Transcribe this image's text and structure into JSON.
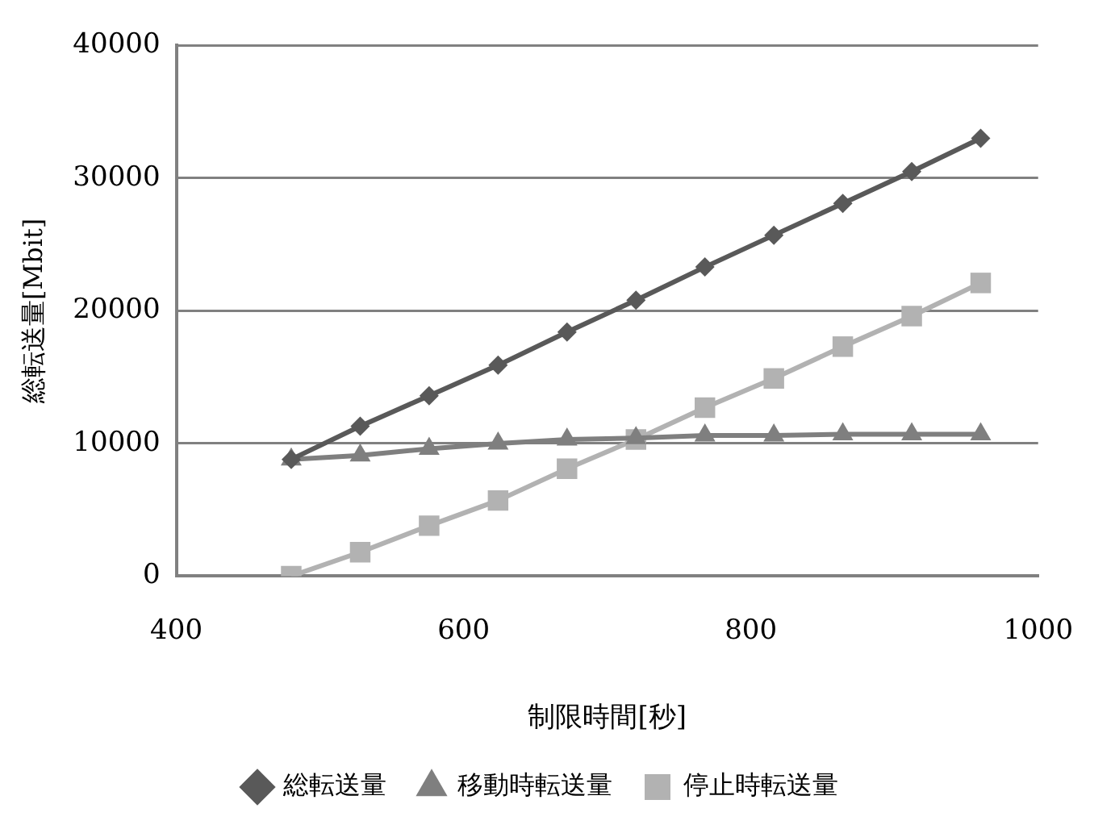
{
  "chart_data": {
    "type": "line",
    "xlabel": "制限時間[秒]",
    "ylabel": "総転送量[Mbit]",
    "x": [
      480,
      528,
      576,
      624,
      672,
      720,
      768,
      816,
      864,
      912,
      960
    ],
    "xlim": [
      400,
      1000
    ],
    "xticks": [
      400,
      600,
      800,
      1000
    ],
    "ylim": [
      0,
      40000
    ],
    "yticks": [
      0,
      10000,
      20000,
      30000,
      40000
    ],
    "grid": "y",
    "legend": "bottom",
    "line_style": "solid",
    "series": [
      {
        "name": "総転送量",
        "color": "#595959",
        "marker": "diamond",
        "values": [
          8800,
          11300,
          13600,
          15900,
          18400,
          20800,
          23300,
          25700,
          28100,
          30500,
          33000
        ]
      },
      {
        "name": "移動時転送量",
        "color": "#7f7f7f",
        "marker": "triangle",
        "values": [
          8800,
          9100,
          9600,
          10000,
          10300,
          10400,
          10600,
          10600,
          10700,
          10700,
          10700
        ]
      },
      {
        "name": "停止時転送量",
        "color": "#b2b2b2",
        "marker": "square",
        "values": [
          0,
          1800,
          3800,
          5700,
          8100,
          10300,
          12700,
          14900,
          17300,
          19600,
          22100
        ]
      }
    ]
  }
}
